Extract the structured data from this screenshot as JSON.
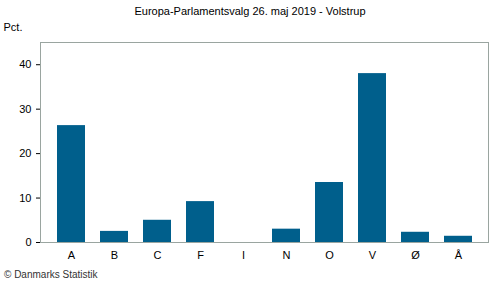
{
  "chart_data": {
    "type": "bar",
    "title": "Europa-Parlamentsvalg 26. maj 2019 - Volstrup",
    "y_label": "Pct.",
    "caption": "© Danmarks Statistik",
    "categories": [
      "A",
      "B",
      "C",
      "F",
      "I",
      "N",
      "O",
      "V",
      "Ø",
      "Å"
    ],
    "values": [
      26.3,
      2.5,
      5.0,
      9.2,
      0,
      3.0,
      13.5,
      38.0,
      2.3,
      1.4
    ],
    "color": "#005f8c",
    "ylim": [
      0,
      45
    ],
    "yticks": [
      0,
      10,
      20,
      30,
      40
    ],
    "grid": false
  }
}
